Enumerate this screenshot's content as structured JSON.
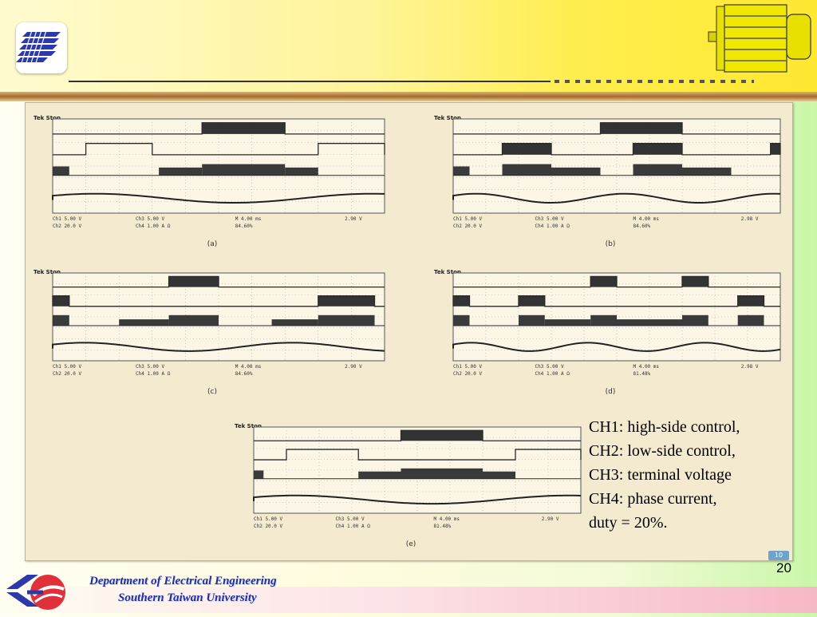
{
  "slide": {
    "page_number": "20",
    "badge": "10"
  },
  "scopes": [
    {
      "caption": "(a)",
      "header": "Tek Stop",
      "ch1_read": "Ch1  5.00 V",
      "ch2_read": "Ch2  20.0 V",
      "ch3_read": "Ch3  5.00 V",
      "ch4_read": "Ch4  1.00 A Ω",
      "time_read": "M 4.00 ms",
      "trig": "2.90 V",
      "extra": "84.60%"
    },
    {
      "caption": "(b)",
      "header": "Tek Stop",
      "ch1_read": "Ch1  5.00 V",
      "ch2_read": "Ch2  20.0 V",
      "ch3_read": "Ch3  5.00 V",
      "ch4_read": "Ch4  1.00 A Ω",
      "time_read": "M 4.00 ms",
      "trig": "2.98 V",
      "extra": "84.60%"
    },
    {
      "caption": "(c)",
      "header": "Tek Stop",
      "ch1_read": "Ch1  5.00 V",
      "ch2_read": "Ch2  20.0 V",
      "ch3_read": "Ch3  5.00 V",
      "ch4_read": "Ch4  1.00 A Ω",
      "time_read": "M 4.00 ms",
      "trig": "2.90 V",
      "extra": "84.60%"
    },
    {
      "caption": "(d)",
      "header": "Tek Stop",
      "ch1_read": "Ch1  5.00 V",
      "ch2_read": "Ch2  20.0 V",
      "ch3_read": "Ch3  5.00 V",
      "ch4_read": "Ch4  1.00 A Ω",
      "time_read": "M 4.00 ms",
      "trig": "2.98 V",
      "extra": "81.48%"
    },
    {
      "caption": "(e)",
      "header": "Tek Stop",
      "ch1_read": "Ch1  5.00 V",
      "ch2_read": "Ch2  20.0 V",
      "ch3_read": "Ch3  5.00 V",
      "ch4_read": "Ch4  1.00 A Ω",
      "time_read": "M 4.00 ms",
      "trig": "2.90 V",
      "extra": "81.48%"
    }
  ],
  "notes": {
    "line1": "CH1: high-side control,",
    "line2": "CH2: low-side control,",
    "line3": "CH3: terminal voltage",
    "line4": "CH4: phase current,",
    "line5": "duty = 20%."
  },
  "footer": {
    "department": "Department of Electrical Engineering",
    "university": "Southern Taiwan University"
  },
  "colors": {
    "title_text": "#1f2f9f",
    "trace": "#2a2a2a",
    "panel": "#f4ead0"
  }
}
